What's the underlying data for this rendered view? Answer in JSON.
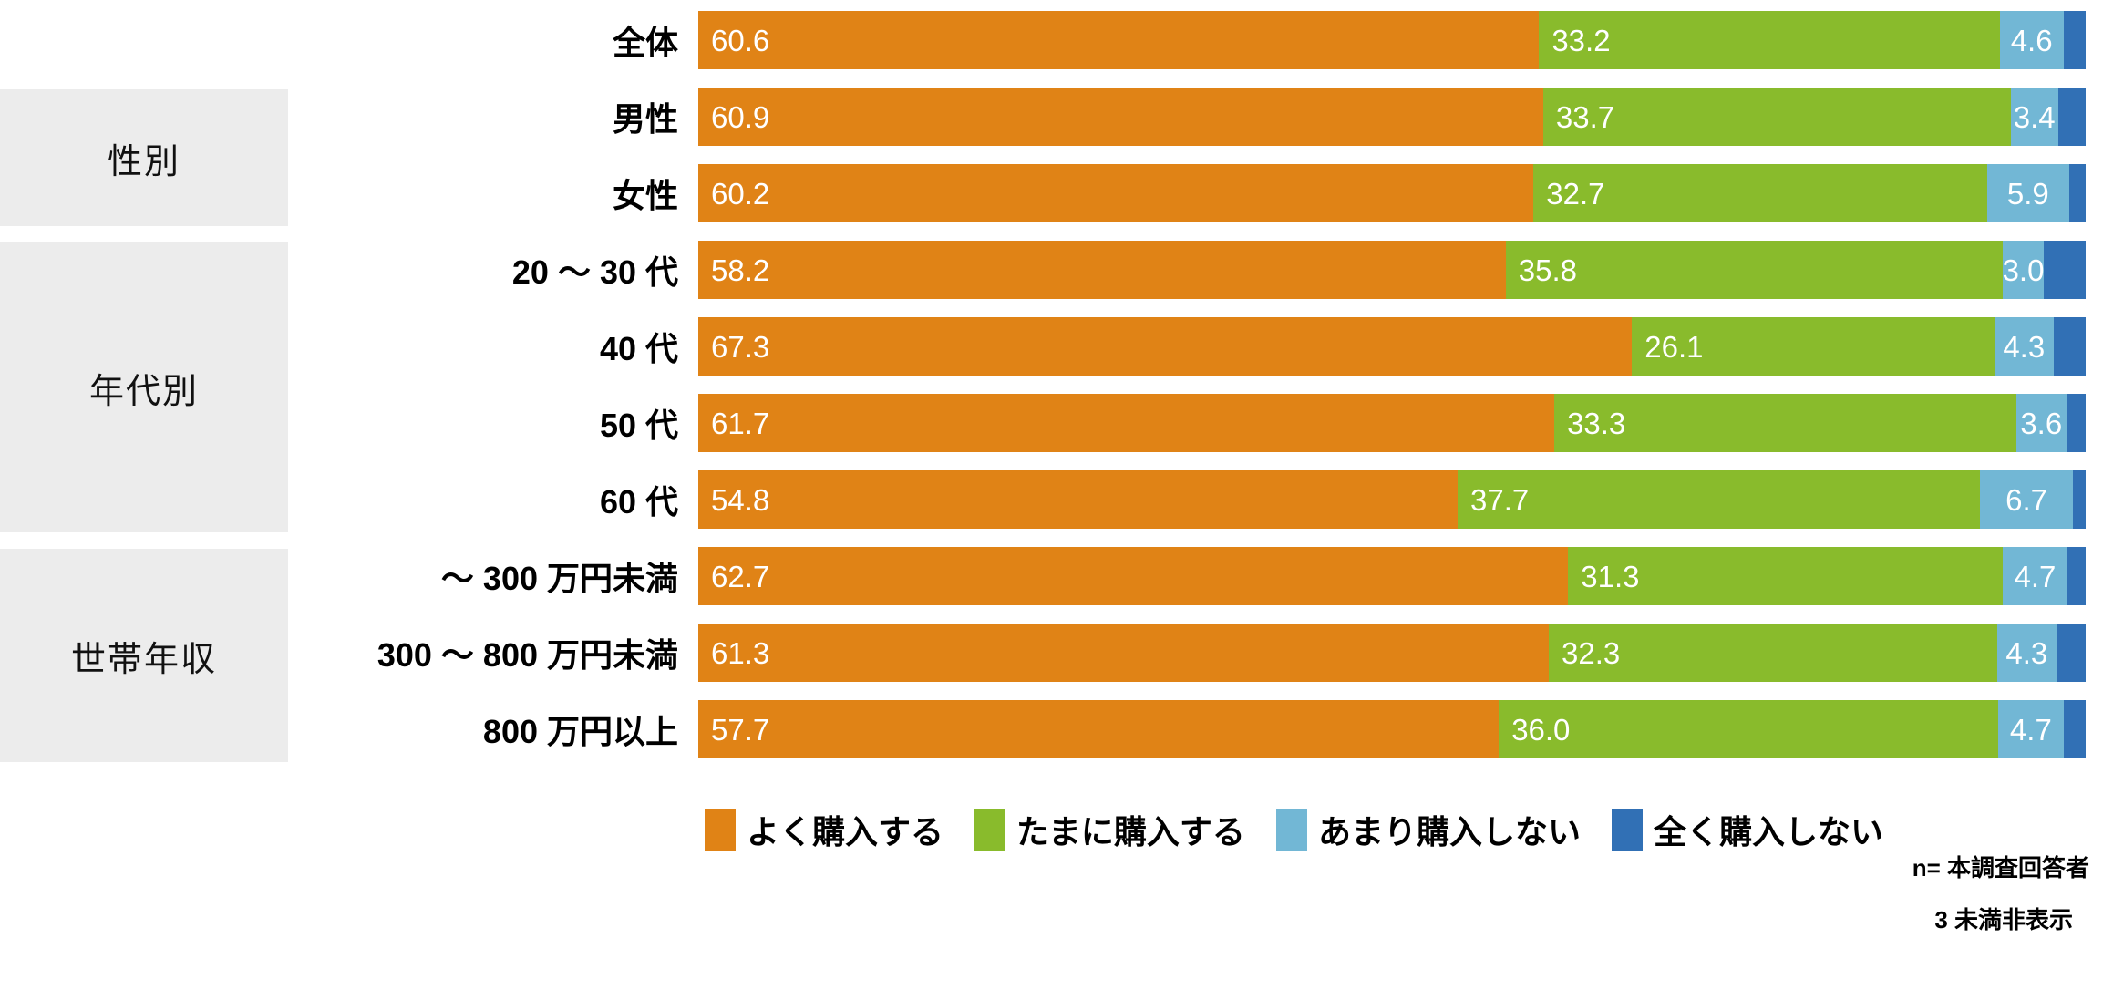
{
  "chart_data": {
    "type": "bar",
    "orientation": "horizontal",
    "stacked": true,
    "unit": "%",
    "xlim": [
      0,
      100
    ],
    "legend_position": "bottom",
    "series": [
      {
        "name": "よく購入する",
        "color": "#E08316"
      },
      {
        "name": "たまに購入する",
        "color": "#89BB2C"
      },
      {
        "name": "あまり購入しない",
        "color": "#72B7D5"
      },
      {
        "name": "全く購入しない",
        "color": "#3170B5"
      }
    ],
    "groups": [
      {
        "label": "",
        "rows": [
          {
            "label": "全体",
            "values": [
              60.6,
              33.2,
              4.6,
              1.6
            ],
            "display": [
              "60.6",
              "33.2",
              "4.6",
              ""
            ]
          }
        ]
      },
      {
        "label": "性別",
        "rows": [
          {
            "label": "男性",
            "values": [
              60.9,
              33.7,
              3.4,
              2.0
            ],
            "display": [
              "60.9",
              "33.7",
              "3.4",
              ""
            ]
          },
          {
            "label": "女性",
            "values": [
              60.2,
              32.7,
              5.9,
              1.2
            ],
            "display": [
              "60.2",
              "32.7",
              "5.9",
              ""
            ]
          }
        ]
      },
      {
        "label": "年代別",
        "rows": [
          {
            "label": "20 ～ 30 代",
            "values": [
              58.2,
              35.8,
              3.0,
              3.0
            ],
            "display": [
              "58.2",
              "35.8",
              "3.0",
              ""
            ]
          },
          {
            "label": "40 代",
            "values": [
              67.3,
              26.1,
              4.3,
              2.3
            ],
            "display": [
              "67.3",
              "26.1",
              "4.3",
              ""
            ]
          },
          {
            "label": "50 代",
            "values": [
              61.7,
              33.3,
              3.6,
              1.4
            ],
            "display": [
              "61.7",
              "33.3",
              "3.6",
              ""
            ]
          },
          {
            "label": "60 代",
            "values": [
              54.8,
              37.7,
              6.7,
              0.8
            ],
            "display": [
              "54.8",
              "37.7",
              "6.7",
              ""
            ]
          }
        ]
      },
      {
        "label": "世帯年収",
        "rows": [
          {
            "label": "～ 300 万円未満",
            "values": [
              62.7,
              31.3,
              4.7,
              1.3
            ],
            "display": [
              "62.7",
              "31.3",
              "4.7",
              ""
            ]
          },
          {
            "label": "300 ～ 800 万円未満",
            "values": [
              61.3,
              32.3,
              4.3,
              2.1
            ],
            "display": [
              "61.3",
              "32.3",
              "4.3",
              ""
            ]
          },
          {
            "label": "800 万円以上",
            "values": [
              57.7,
              36.0,
              4.7,
              1.6
            ],
            "display": [
              "57.7",
              "36.0",
              "4.7",
              ""
            ]
          }
        ]
      }
    ]
  },
  "legend": {
    "entries": [
      "よく購入する",
      "たまに購入する",
      "あまり購入しない",
      "全く購入しない"
    ]
  },
  "notes": {
    "line1": "n= 本調査回答者",
    "line2": "3 未満非表示"
  },
  "colors": {
    "orange": "#E08316",
    "green": "#89BB2C",
    "light_blue": "#72B7D5",
    "dark_blue": "#3170B5",
    "group_box_gray": "#ECECEC"
  }
}
